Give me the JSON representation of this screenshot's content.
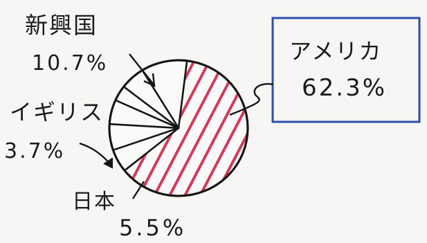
{
  "chart_data": {
    "type": "pie",
    "title": "",
    "slices": [
      {
        "label": "アメリカ",
        "value": 62.3,
        "value_text": "62.3%",
        "color": "#d23a5a",
        "hatched": true,
        "callout_box_color": "#2d4fa8"
      },
      {
        "label": "日本",
        "value": 5.5,
        "value_text": "5.5%"
      },
      {
        "label": "イギリス",
        "value": 3.7,
        "value_text": "3.7%"
      },
      {
        "label": "新興国",
        "value": 10.7,
        "value_text": "10.7%"
      }
    ],
    "unlabeled_slices": [
      6.2,
      5.8,
      5.8
    ],
    "style": "hand-drawn on paper"
  }
}
